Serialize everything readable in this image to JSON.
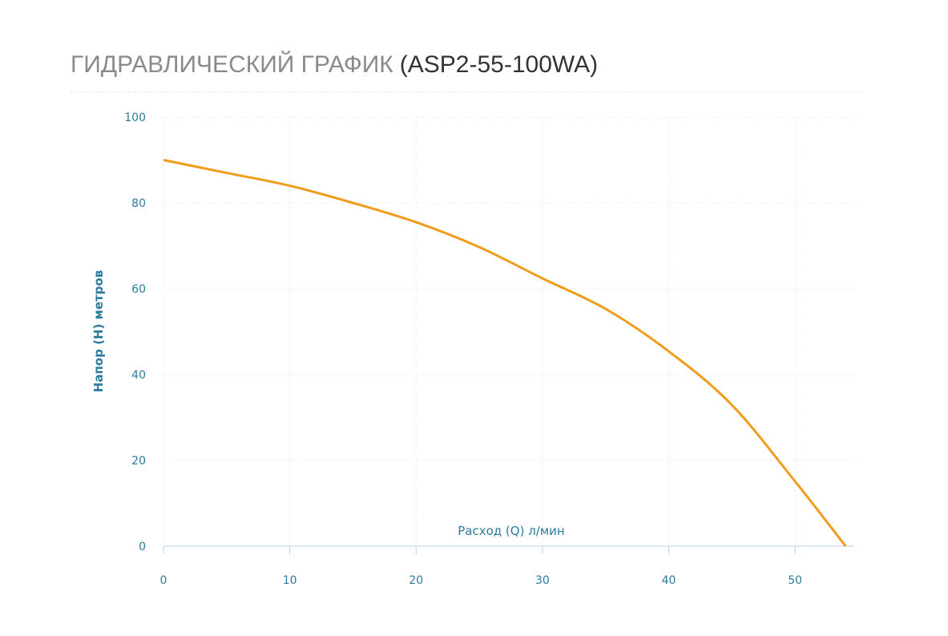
{
  "chart_data": {
    "type": "line",
    "title": "ГИДРАВЛИЧЕСКИЙ ГРАФИК",
    "subtitle": "(ASP2-55-100WA)",
    "x_label": "Расход (Q) л/мин",
    "y_label": "Напор (H) метров",
    "x": [
      0,
      5,
      10,
      15,
      20,
      25,
      30,
      35,
      40,
      45,
      50,
      54
    ],
    "series": [
      {
        "name": "ASP2-55-100WA",
        "color": "#f09c1c",
        "values": [
          90,
          87,
          84,
          80,
          75.5,
          69.7,
          62.4,
          55.3,
          45.4,
          32.9,
          15.1,
          0
        ]
      }
    ],
    "xlim": [
      0,
      55
    ],
    "xticks": [
      0,
      10,
      20,
      30,
      40,
      50
    ],
    "ylim": [
      0,
      100
    ],
    "yticks": [
      0,
      20,
      40,
      60,
      80,
      100
    ],
    "grid": true
  }
}
